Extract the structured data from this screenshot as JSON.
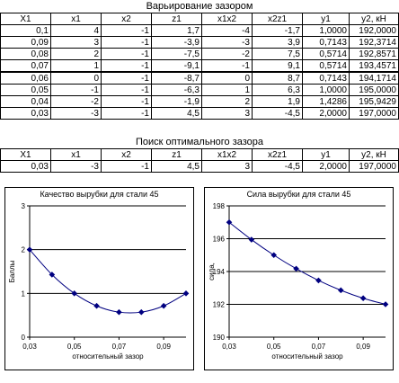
{
  "tables": {
    "title1": "Варьирование зазором",
    "title2": "Поиск оптимального зазора",
    "headers": [
      "X1",
      "x1",
      "x2",
      "z1",
      "x1x2",
      "x2z1",
      "y1",
      "y2, кН"
    ],
    "rows": [
      [
        "0,1",
        "4",
        "-1",
        "1,7",
        "-4",
        "-1,7",
        "1,0000",
        "192,0000"
      ],
      [
        "0,09",
        "3",
        "-1",
        "-3,9",
        "-3",
        "3,9",
        "0,7143",
        "192,3714"
      ],
      [
        "0,08",
        "2",
        "-1",
        "-7,5",
        "-2",
        "7,5",
        "0,5714",
        "192,8571"
      ],
      [
        "0,07",
        "1",
        "-1",
        "-9,1",
        "-1",
        "9,1",
        "0,5714",
        "193,4571"
      ],
      [
        "0,06",
        "0",
        "-1",
        "-8,7",
        "0",
        "8,7",
        "0,7143",
        "194,1714"
      ],
      [
        "0,05",
        "-1",
        "-1",
        "-6,3",
        "1",
        "6,3",
        "1,0000",
        "195,0000"
      ],
      [
        "0,04",
        "-2",
        "-1",
        "-1,9",
        "2",
        "1,9",
        "1,4286",
        "195,9429"
      ],
      [
        "0,03",
        "-3",
        "-1",
        "4,5",
        "3",
        "-4,5",
        "2,0000",
        "197,0000"
      ]
    ],
    "opt_row": [
      "0,03",
      "-3",
      "-1",
      "4,5",
      "3",
      "-4,5",
      "2,0000",
      "197,0000"
    ]
  },
  "chart_data": [
    {
      "type": "line",
      "title": "Качество вырубки для стали 45",
      "xlabel": "относительный зазор",
      "ylabel": "Баллы",
      "x": [
        0.03,
        0.04,
        0.05,
        0.06,
        0.07,
        0.08,
        0.09,
        0.1
      ],
      "y": [
        2.0,
        1.4286,
        1.0,
        0.7143,
        0.5714,
        0.5714,
        0.7143,
        1.0
      ],
      "xlim": [
        0.03,
        0.1
      ],
      "ylim": [
        0,
        3
      ],
      "xticks": [
        "0,03",
        "0,05",
        "0,07",
        "0,09"
      ],
      "xtick_values": [
        0.03,
        0.05,
        0.07,
        0.09
      ],
      "yticks": [
        "0",
        "1",
        "2",
        "3"
      ],
      "ytick_values": [
        0,
        1,
        2,
        3
      ],
      "grid": true,
      "color": "#000080"
    },
    {
      "type": "line",
      "title": "Сила вырубки для стали 45",
      "xlabel": "относительный зазор",
      "ylabel": "сила,",
      "x": [
        0.03,
        0.04,
        0.05,
        0.06,
        0.07,
        0.08,
        0.09,
        0.1
      ],
      "y": [
        197.0,
        195.9429,
        195.0,
        194.1714,
        193.4571,
        192.8571,
        192.3714,
        192.0
      ],
      "xlim": [
        0.03,
        0.1
      ],
      "ylim": [
        190,
        198
      ],
      "xticks": [
        "0,03",
        "0,05",
        "0,07",
        "0,09"
      ],
      "xtick_values": [
        0.03,
        0.05,
        0.07,
        0.09
      ],
      "yticks": [
        "190",
        "192",
        "194",
        "196",
        "198"
      ],
      "ytick_values": [
        190,
        192,
        194,
        196,
        198
      ],
      "grid": true,
      "color": "#000080"
    }
  ]
}
